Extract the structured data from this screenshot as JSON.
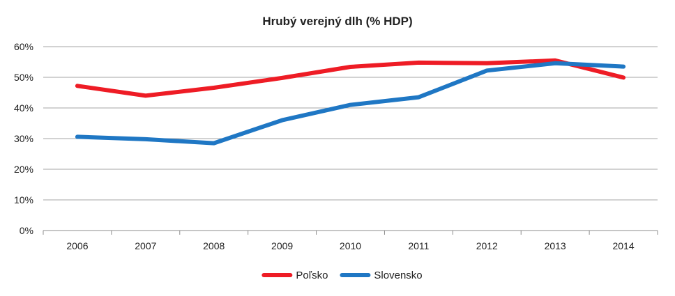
{
  "chart_data": {
    "type": "line",
    "title": "Hrubý verejný dlh (% HDP)",
    "xlabel": "",
    "ylabel": "",
    "categories": [
      "2006",
      "2007",
      "2008",
      "2009",
      "2010",
      "2011",
      "2012",
      "2013",
      "2014"
    ],
    "y_ticks": [
      "0%",
      "10%",
      "20%",
      "30%",
      "40%",
      "50%",
      "60%"
    ],
    "ylim": [
      0,
      60
    ],
    "grid": true,
    "legend_position": "bottom",
    "series": [
      {
        "name": "Poľsko",
        "color": "#ee1c25",
        "values": [
          47.2,
          44.0,
          46.6,
          49.8,
          53.4,
          54.8,
          54.6,
          55.5,
          49.9
        ]
      },
      {
        "name": "Slovensko",
        "color": "#1f77c4",
        "values": [
          30.6,
          29.8,
          28.5,
          36.0,
          41.0,
          43.5,
          52.2,
          54.6,
          53.5
        ]
      }
    ]
  }
}
